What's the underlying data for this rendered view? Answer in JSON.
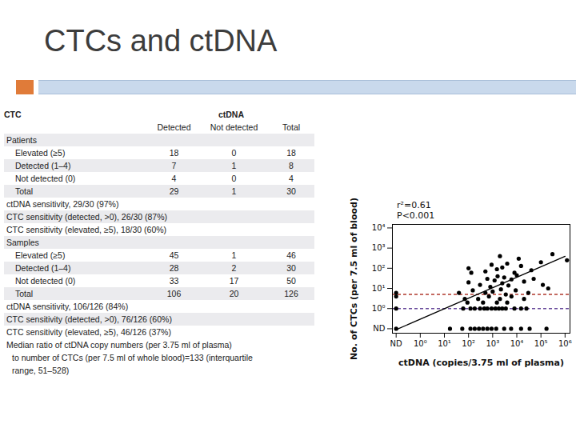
{
  "title": "CTCs and ctDNA",
  "table": {
    "title": "CTC",
    "column_group": "ctDNA",
    "columns": [
      "Detected",
      "Not detected",
      "Total"
    ],
    "sections": [
      {
        "name": "Patients",
        "rows": [
          {
            "label": "Elevated (≥5)",
            "values": [
              18,
              0,
              18
            ]
          },
          {
            "label": "Detected (1–4)",
            "values": [
              7,
              1,
              8
            ]
          },
          {
            "label": "Not detected (0)",
            "values": [
              4,
              0,
              4
            ]
          },
          {
            "label": "Total",
            "values": [
              29,
              1,
              30
            ]
          }
        ],
        "notes": [
          "ctDNA sensitivity, 29/30 (97%)",
          "CTC sensitivity (detected, >0), 26/30 (87%)",
          "CTC sensitivity (elevated, ≥5), 18/30 (60%)"
        ]
      },
      {
        "name": "Samples",
        "rows": [
          {
            "label": "Elevated (≥5)",
            "values": [
              45,
              1,
              46
            ]
          },
          {
            "label": "Detected (1–4)",
            "values": [
              28,
              2,
              30
            ]
          },
          {
            "label": "Not detected (0)",
            "values": [
              33,
              17,
              50
            ]
          },
          {
            "label": "Total",
            "values": [
              106,
              20,
              126
            ]
          }
        ],
        "notes": [
          "ctDNA sensitivity, 106/126 (84%)",
          "CTC sensitivity (detected, >0), 76/126 (60%)",
          "CTC sensitivity (elevated, ≥5), 46/126 (37%)"
        ]
      }
    ],
    "footnote": [
      "Median ratio of ctDNA copy numbers (per 3.75 ml of plasma)",
      "to number of CTCs (per 7.5 ml of whole blood)=133 (interquartile",
      "range, 51–528)"
    ]
  },
  "chart_data": {
    "type": "scatter",
    "x_label": "ctDNA (copies/3.75 ml of plasma)",
    "y_label": "No. of CTCs (per 7.5 ml of blood)",
    "annotations": [
      "r²=0.61",
      "P<0.001"
    ],
    "log": true,
    "color": "#000000",
    "marker": "circle",
    "xlim": [
      0.07,
      1600000
    ],
    "ylim": [
      0.06,
      15000
    ],
    "xticks": [
      {
        "value": 0.1,
        "label": "ND"
      },
      {
        "value": 1,
        "label": "10⁰"
      },
      {
        "value": 10,
        "label": "10¹"
      },
      {
        "value": 100,
        "label": "10²"
      },
      {
        "value": 1000,
        "label": "10³"
      },
      {
        "value": 10000,
        "label": "10⁴"
      },
      {
        "value": 100000,
        "label": "10⁵"
      },
      {
        "value": 1000000,
        "label": "10⁶"
      }
    ],
    "yticks": [
      {
        "value": 0.1,
        "label": "ND"
      },
      {
        "value": 1,
        "label": "10⁰"
      },
      {
        "value": 10,
        "label": "10¹"
      },
      {
        "value": 100,
        "label": "10²"
      },
      {
        "value": 1000,
        "label": "10³"
      },
      {
        "value": 10000,
        "label": "10⁴"
      }
    ],
    "x": [
      0.1,
      0.1,
      0.1,
      0.1,
      17,
      55,
      120,
      180,
      270,
      400,
      600,
      900,
      1400,
      3000,
      5800,
      15000,
      34000,
      170000,
      60,
      120,
      180,
      300,
      450,
      600,
      900,
      1300,
      1800,
      2500,
      3500,
      8000,
      15000,
      25000,
      90,
      400,
      1500,
      4000,
      70,
      250,
      700,
      2000,
      6000,
      20000,
      40,
      150,
      500,
      1000,
      2200,
      3500,
      9000,
      30000,
      200000,
      100,
      300,
      600,
      800,
      1200,
      1600,
      2500,
      3000,
      4500,
      6000,
      10000,
      20000,
      50000,
      120000,
      100,
      130,
      500,
      900,
      1500,
      2500,
      4000,
      8000,
      15000,
      40000,
      100000,
      2000,
      12000,
      300000,
      1200000
    ],
    "values": [
      6,
      4,
      1,
      0.1,
      0.1,
      0.1,
      0.1,
      0.1,
      0.1,
      0.1,
      0.1,
      0.1,
      0.1,
      0.1,
      0.1,
      0.1,
      0.1,
      0.1,
      1,
      1,
      1,
      1,
      1,
      1,
      1,
      1,
      1,
      1,
      1,
      1,
      1,
      1,
      2,
      2,
      2,
      2,
      3,
      3,
      4,
      3,
      4,
      3,
      6,
      8,
      6,
      7,
      9,
      5,
      8,
      6,
      10,
      20,
      15,
      30,
      12,
      25,
      40,
      18,
      35,
      14,
      28,
      45,
      22,
      30,
      15,
      100,
      60,
      70,
      150,
      90,
      110,
      170,
      60,
      130,
      80,
      200,
      400,
      300,
      500,
      250
    ],
    "reference_lines": [
      {
        "y": 5,
        "color": "#b03a2e",
        "line_style": "dashed"
      },
      {
        "y": 1,
        "color": "#6a4c9c",
        "line_style": "dashed"
      }
    ],
    "fit_line": {
      "x": [
        0.1,
        1000000
      ],
      "y": [
        0.09,
        390
      ],
      "color": "#000000"
    }
  }
}
